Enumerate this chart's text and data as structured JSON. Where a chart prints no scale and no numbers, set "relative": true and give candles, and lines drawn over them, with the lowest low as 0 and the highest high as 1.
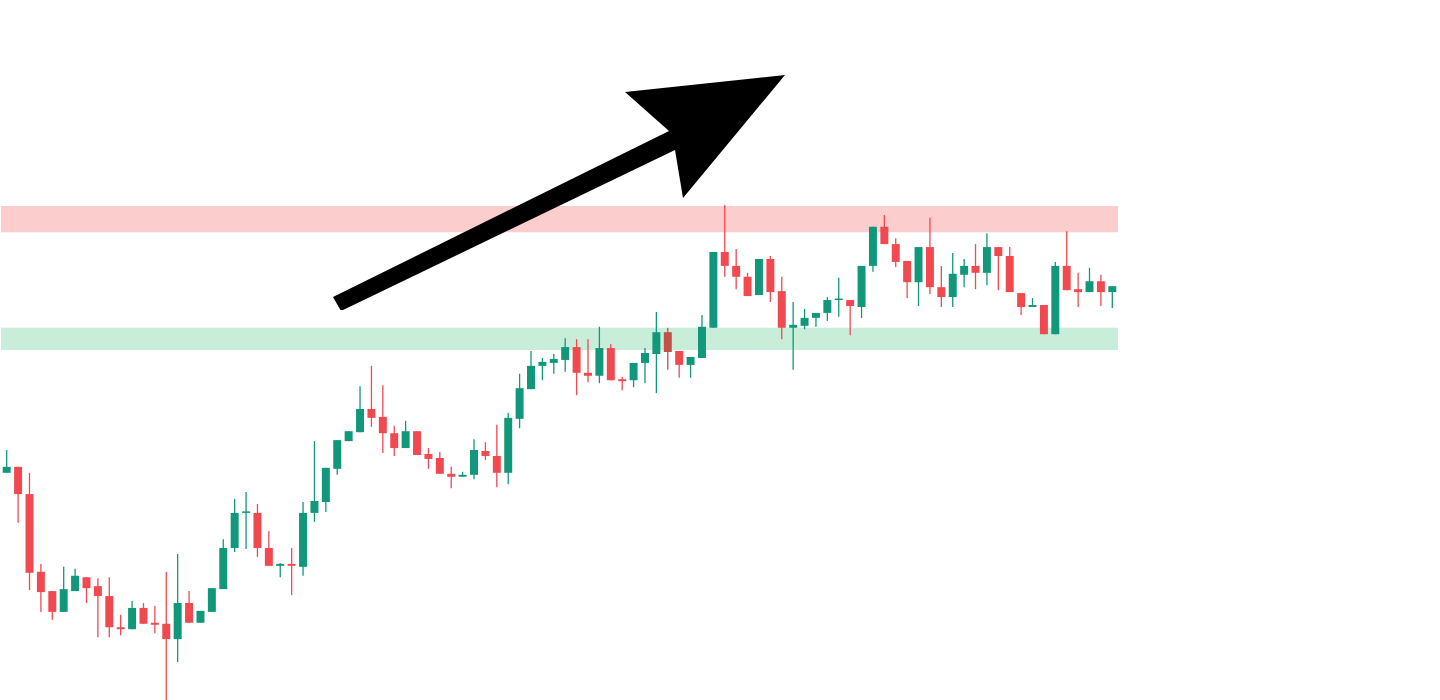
{
  "chart_data": {
    "type": "candlestick",
    "relative": true,
    "categories": [
      null,
      null,
      null,
      null,
      null,
      null,
      null,
      null,
      null,
      null,
      null,
      null,
      null,
      null,
      null,
      null,
      null,
      null,
      null,
      null,
      null,
      null,
      null,
      null,
      null,
      null,
      null,
      null,
      null,
      null,
      null,
      null,
      null,
      null,
      null,
      null,
      null,
      null,
      null,
      null,
      null,
      null,
      null,
      null,
      null,
      null,
      null,
      null,
      null,
      null,
      null,
      null,
      null,
      null,
      null,
      null,
      null,
      null,
      null,
      null,
      null,
      null,
      null,
      null,
      null,
      null,
      null,
      null,
      null,
      null,
      null,
      null,
      null,
      null,
      null,
      null,
      null,
      null,
      null,
      null,
      null,
      null,
      null,
      null,
      null,
      null,
      null,
      null,
      null,
      null,
      null,
      null,
      null,
      null,
      null,
      null,
      null,
      null
    ],
    "ohlc": [
      [
        0.459,
        0.505,
        0.459,
        0.471
      ],
      [
        0.471,
        0.471,
        0.358,
        0.416
      ],
      [
        0.416,
        0.459,
        0.222,
        0.257
      ],
      [
        0.259,
        0.275,
        0.178,
        0.218
      ],
      [
        0.22,
        0.22,
        0.162,
        0.178
      ],
      [
        0.178,
        0.269,
        0.178,
        0.224
      ],
      [
        0.22,
        0.265,
        0.22,
        0.251
      ],
      [
        0.248,
        0.248,
        0.196,
        0.226
      ],
      [
        0.23,
        0.246,
        0.127,
        0.21
      ],
      [
        0.21,
        0.248,
        0.127,
        0.147
      ],
      [
        0.147,
        0.172,
        0.131,
        0.143
      ],
      [
        0.143,
        0.2,
        0.143,
        0.186
      ],
      [
        0.186,
        0.196,
        0.154,
        0.154
      ],
      [
        0.156,
        0.19,
        0.135,
        0.152
      ],
      [
        0.154,
        0.259,
        0,
        0.123
      ],
      [
        0.123,
        0.295,
        0.077,
        0.196
      ],
      [
        0.196,
        0.22,
        0.156,
        0.156
      ],
      [
        0.156,
        0.18,
        0.156,
        0.18
      ],
      [
        0.178,
        0.226,
        0.178,
        0.226
      ],
      [
        0.224,
        0.325,
        0.224,
        0.307
      ],
      [
        0.307,
        0.406,
        0.299,
        0.378
      ],
      [
        0.378,
        0.42,
        0.305,
        0.378
      ],
      [
        0.378,
        0.396,
        0.289,
        0.307
      ],
      [
        0.307,
        0.341,
        0.271,
        0.271
      ],
      [
        0.271,
        0.277,
        0.248,
        0.275
      ],
      [
        0.275,
        0.307,
        0.212,
        0.271
      ],
      [
        0.269,
        0.4,
        0.251,
        0.378
      ],
      [
        0.378,
        0.523,
        0.36,
        0.402
      ],
      [
        0.4,
        0.469,
        0.38,
        0.469
      ],
      [
        0.467,
        0.525,
        0.455,
        0.525
      ],
      [
        0.523,
        0.543,
        0.523,
        0.543
      ],
      [
        0.541,
        0.634,
        0.541,
        0.588
      ],
      [
        0.588,
        0.675,
        0.552,
        0.57
      ],
      [
        0.572,
        0.636,
        0.499,
        0.539
      ],
      [
        0.539,
        0.554,
        0.493,
        0.509
      ],
      [
        0.509,
        0.564,
        0.509,
        0.543
      ],
      [
        0.543,
        0.543,
        0.495,
        0.495
      ],
      [
        0.497,
        0.509,
        0.467,
        0.487
      ],
      [
        0.489,
        0.501,
        0.457,
        0.457
      ],
      [
        0.457,
        0.471,
        0.428,
        0.451
      ],
      [
        0.451,
        0.461,
        0.451,
        0.455
      ],
      [
        0.455,
        0.527,
        0.446,
        0.505
      ],
      [
        0.503,
        0.521,
        0.485,
        0.493
      ],
      [
        0.493,
        0.556,
        0.43,
        0.459
      ],
      [
        0.459,
        0.58,
        0.436,
        0.57
      ],
      [
        0.568,
        0.659,
        0.549,
        0.63
      ],
      [
        0.628,
        0.705,
        0.628,
        0.675
      ],
      [
        0.675,
        0.691,
        0.646,
        0.683
      ],
      [
        0.681,
        0.699,
        0.659,
        0.689
      ],
      [
        0.687,
        0.731,
        0.663,
        0.713
      ],
      [
        0.713,
        0.729,
        0.616,
        0.661
      ],
      [
        0.661,
        0.729,
        0.642,
        0.655
      ],
      [
        0.655,
        0.754,
        0.64,
        0.711
      ],
      [
        0.711,
        0.719,
        0.646,
        0.646
      ],
      [
        0.648,
        0.653,
        0.626,
        0.644
      ],
      [
        0.646,
        0.681,
        0.632,
        0.681
      ],
      [
        0.681,
        0.711,
        0.64,
        0.701
      ],
      [
        0.699,
        0.784,
        0.62,
        0.743
      ],
      [
        0.743,
        0.752,
        0.667,
        0.703
      ],
      [
        0.705,
        0.705,
        0.651,
        0.677
      ],
      [
        0.677,
        0.693,
        0.651,
        0.693
      ],
      [
        0.691,
        0.778,
        0.691,
        0.754
      ],
      [
        0.752,
        0.905,
        0.752,
        0.905
      ],
      [
        0.905,
        1,
        0.855,
        0.877
      ],
      [
        0.877,
        0.911,
        0.83,
        0.855
      ],
      [
        0.855,
        0.863,
        0.816,
        0.816
      ],
      [
        0.818,
        0.891,
        0.818,
        0.891
      ],
      [
        0.891,
        0.897,
        0.804,
        0.824
      ],
      [
        0.826,
        0.855,
        0.729,
        0.752
      ],
      [
        0.752,
        0.804,
        0.667,
        0.758
      ],
      [
        0.756,
        0.79,
        0.749,
        0.772
      ],
      [
        0.772,
        0.782,
        0.754,
        0.782
      ],
      [
        0.782,
        0.814,
        0.766,
        0.808
      ],
      [
        0.808,
        0.853,
        0.774,
        0.808
      ],
      [
        0.808,
        0.808,
        0.737,
        0.796
      ],
      [
        0.794,
        0.877,
        0.772,
        0.877
      ],
      [
        0.877,
        0.956,
        0.865,
        0.956
      ],
      [
        0.956,
        0.98,
        0.921,
        0.921
      ],
      [
        0.921,
        0.933,
        0.875,
        0.885
      ],
      [
        0.887,
        0.887,
        0.812,
        0.844
      ],
      [
        0.844,
        0.915,
        0.796,
        0.915
      ],
      [
        0.915,
        0.974,
        0.82,
        0.834
      ],
      [
        0.834,
        0.877,
        0.794,
        0.814
      ],
      [
        0.814,
        0.903,
        0.794,
        0.861
      ],
      [
        0.859,
        0.891,
        0.834,
        0.877
      ],
      [
        0.877,
        0.921,
        0.83,
        0.863
      ],
      [
        0.863,
        0.943,
        0.838,
        0.915
      ],
      [
        0.915,
        0.915,
        0.828,
        0.897
      ],
      [
        0.897,
        0.915,
        0.824,
        0.824
      ],
      [
        0.822,
        0.822,
        0.778,
        0.794
      ],
      [
        0.794,
        0.812,
        0.794,
        0.798
      ],
      [
        0.798,
        0.798,
        0.739,
        0.739
      ],
      [
        0.739,
        0.885,
        0.739,
        0.877
      ],
      [
        0.877,
        0.947,
        0.828,
        0.828
      ],
      [
        0.83,
        0.863,
        0.794,
        0.824
      ],
      [
        0.824,
        0.873,
        0.824,
        0.846
      ],
      [
        0.846,
        0.859,
        0.796,
        0.824
      ],
      [
        0.824,
        0.836,
        0.792,
        0.836
      ]
    ],
    "colors": [
      "#11987a",
      "#f04a50",
      "#f04a50",
      "#f04a50",
      "#f04a50",
      "#11987a",
      "#11987a",
      "#f04a50",
      "#f04a50",
      "#f04a50",
      "#f04a50",
      "#11987a",
      "#f04a50",
      "#f04a50",
      "#f04a50",
      "#11987a",
      "#f04a50",
      "#11987a",
      "#11987a",
      "#11987a",
      "#11987a",
      "#11987a",
      "#f04a50",
      "#f04a50",
      "#11987a",
      "#f04a50",
      "#11987a",
      "#11987a",
      "#11987a",
      "#11987a",
      "#11987a",
      "#11987a",
      "#f04a50",
      "#f04a50",
      "#f04a50",
      "#11987a",
      "#f04a50",
      "#f04a50",
      "#f04a50",
      "#f04a50",
      "#11987a",
      "#11987a",
      "#f04a50",
      "#f04a50",
      "#11987a",
      "#11987a",
      "#11987a",
      "#11987a",
      "#11987a",
      "#11987a",
      "#f04a50",
      "#f04a50",
      "#11987a",
      "#f04a50",
      "#f04a50",
      "#11987a",
      "#11987a",
      "#11987a",
      "#c0504a",
      "#f04a50",
      "#11987a",
      "#11987a",
      "#11987a",
      "#f04a50",
      "#f04a50",
      "#f04a50",
      "#11987a",
      "#f04a50",
      "#f04a50",
      "#11987a",
      "#11987a",
      "#11987a",
      "#11987a",
      "#11987a",
      "#f04a50",
      "#11987a",
      "#11987a",
      "#f04a50",
      "#f04a50",
      "#f04a50",
      "#11987a",
      "#f04a50",
      "#f04a50",
      "#11987a",
      "#11987a",
      "#f04a50",
      "#11987a",
      "#f04a50",
      "#f04a50",
      "#f04a50",
      "#11987a",
      "#f04a50",
      "#11987a",
      "#f04a50",
      "#f04a50",
      "#11987a",
      "#f04a50",
      "#11987a"
    ],
    "bands": [
      {
        "axis": "y",
        "from": 0.945,
        "to": 0.998,
        "color": "#fbcdcd"
      },
      {
        "axis": "y",
        "from": 0.707,
        "to": 0.752,
        "color": "#c8eed9"
      }
    ]
  }
}
